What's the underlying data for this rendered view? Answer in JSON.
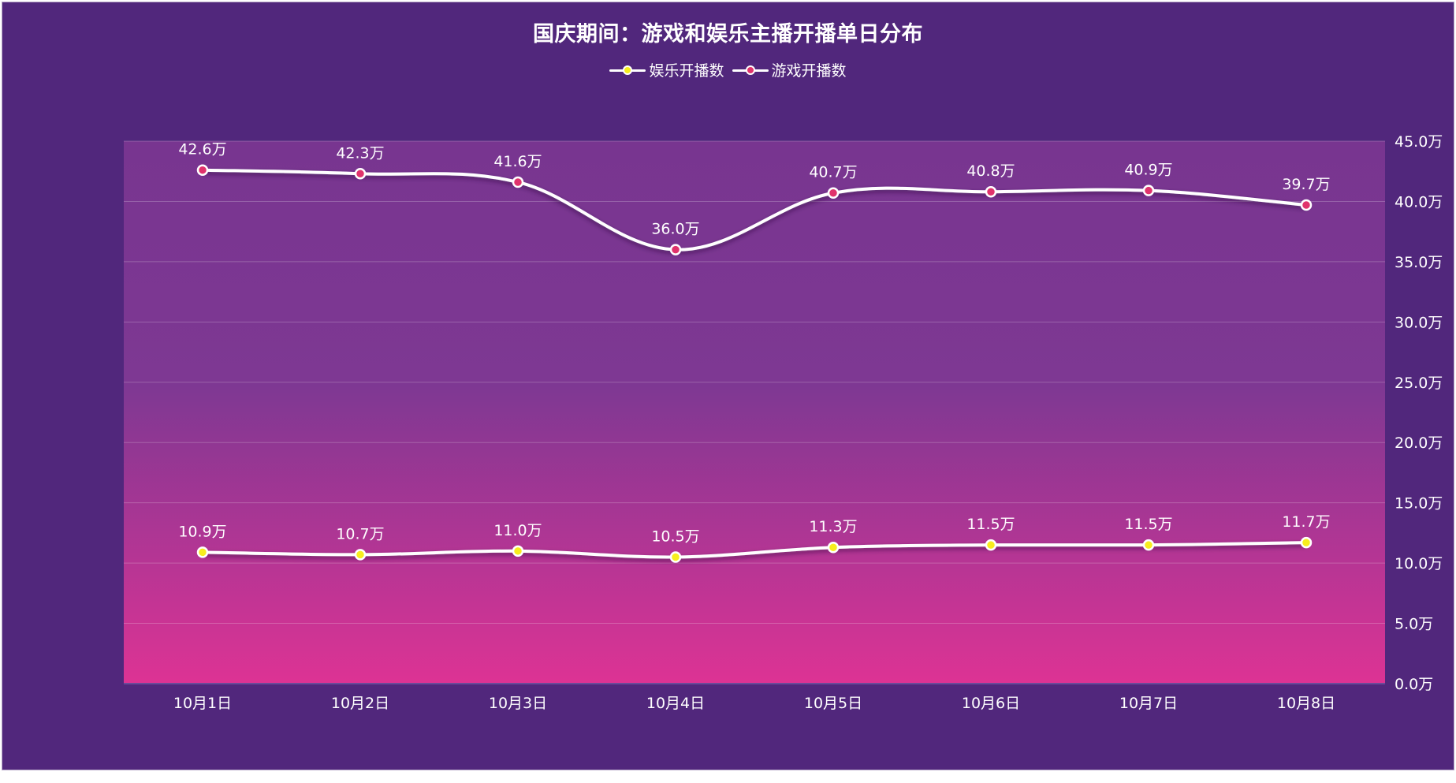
{
  "title": "国庆期间：游戏和娱乐主播开播单日分布",
  "colors": {
    "panel_bg": "#51277c",
    "plot_top": "#783590",
    "plot_bottom": "#dd3394",
    "line": "#ffffff",
    "entertainment_dot": "#f7ee1e",
    "game_dot": "#e0336c"
  },
  "legend": [
    {
      "label": "娱乐开播数",
      "dot_color": "#f7ee1e"
    },
    {
      "label": "游戏开播数",
      "dot_color": "#e0336c"
    }
  ],
  "chart_data": {
    "type": "line",
    "categories": [
      "10月1日",
      "10月2日",
      "10月3日",
      "10月4日",
      "10月5日",
      "10月6日",
      "10月7日",
      "10月8日"
    ],
    "series": [
      {
        "name": "娱乐开播数",
        "values": [
          10.9,
          10.7,
          11.0,
          10.5,
          11.3,
          11.5,
          11.5,
          11.7
        ],
        "labels": [
          "10.9万",
          "10.7万",
          "11.0万",
          "10.5万",
          "11.3万",
          "11.5万",
          "11.5万",
          "11.7万"
        ]
      },
      {
        "name": "游戏开播数",
        "values": [
          42.6,
          42.3,
          41.6,
          36.0,
          40.7,
          40.8,
          40.9,
          39.7
        ],
        "labels": [
          "42.6万",
          "42.3万",
          "41.6万",
          "36.0万",
          "40.7万",
          "40.8万",
          "40.9万",
          "39.7万"
        ]
      }
    ],
    "y_axis": {
      "position": "right",
      "ylim": [
        0,
        45
      ],
      "ticks": [
        0,
        5,
        10,
        15,
        20,
        25,
        30,
        35,
        40,
        45
      ],
      "tick_labels": [
        "0.0万",
        "5.0万",
        "10.0万",
        "15.0万",
        "20.0万",
        "25.0万",
        "30.0万",
        "35.0万",
        "40.0万",
        "45.0万"
      ]
    },
    "grid": true,
    "legend_position": "top-center",
    "smooth": true
  }
}
